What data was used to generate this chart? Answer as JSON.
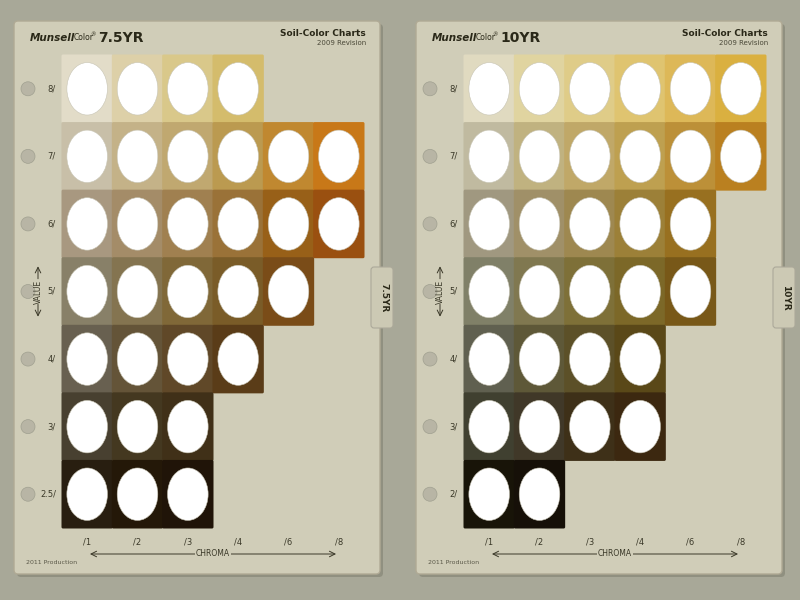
{
  "outer_bg": "#a8a898",
  "card_bg": "#d0cdb8",
  "chart1": {
    "title_hue": "7.5YR",
    "tab_label": "7.5YR",
    "values": [
      "8/",
      "7/",
      "6/",
      "5/",
      "4/",
      "3/",
      "2.5/"
    ],
    "chromas": [
      "/1",
      "/2",
      "/3",
      "/4",
      "/6",
      "/8"
    ],
    "colors": [
      [
        "#e2dcc8",
        "#ddd0a8",
        "#d9c88a",
        "#d4bc6c",
        null,
        null
      ],
      [
        "#c8bfa8",
        "#c4b288",
        "#c0a870",
        "#bb9a50",
        "#c08830",
        "#c87818"
      ],
      [
        "#a89880",
        "#a48c68",
        "#a08050",
        "#9a7238",
        "#986018",
        "#9a5010"
      ],
      [
        "#888068",
        "#847450",
        "#806838",
        "#7a5c28",
        "#7a4c18",
        null
      ],
      [
        "#686050",
        "#645438",
        "#604828",
        "#5a3c18",
        null,
        null
      ],
      [
        "#484030",
        "#443820",
        "#403018",
        null,
        null,
        null
      ],
      [
        "#281e10",
        "#241808",
        "#201408",
        null,
        null,
        null
      ]
    ]
  },
  "chart2": {
    "title_hue": "10YR",
    "tab_label": "10YR",
    "values": [
      "8/",
      "7/",
      "6/",
      "5/",
      "4/",
      "3/",
      "2/"
    ],
    "chromas": [
      "/1",
      "/2",
      "/3",
      "/4",
      "/6",
      "/8"
    ],
    "colors": [
      [
        "#e0dac0",
        "#e0d4a0",
        "#dfcc88",
        "#dfc470",
        "#ddb858",
        "#dab040"
      ],
      [
        "#c0baa0",
        "#c0b280",
        "#c0a868",
        "#bea050",
        "#bc9038",
        "#ba8020"
      ],
      [
        "#a09880",
        "#a09068",
        "#9e8850",
        "#9c8038",
        "#987020",
        null
      ],
      [
        "#808068",
        "#807850",
        "#7e7038",
        "#7c6828",
        "#785818",
        null
      ],
      [
        "#606050",
        "#5e5838",
        "#5c5028",
        "#5a4818",
        null,
        null
      ],
      [
        "#404030",
        "#403828",
        "#3e3018",
        "#3c2810",
        null,
        null
      ],
      [
        "#181408",
        "#161008",
        null,
        null,
        null,
        null
      ]
    ]
  }
}
